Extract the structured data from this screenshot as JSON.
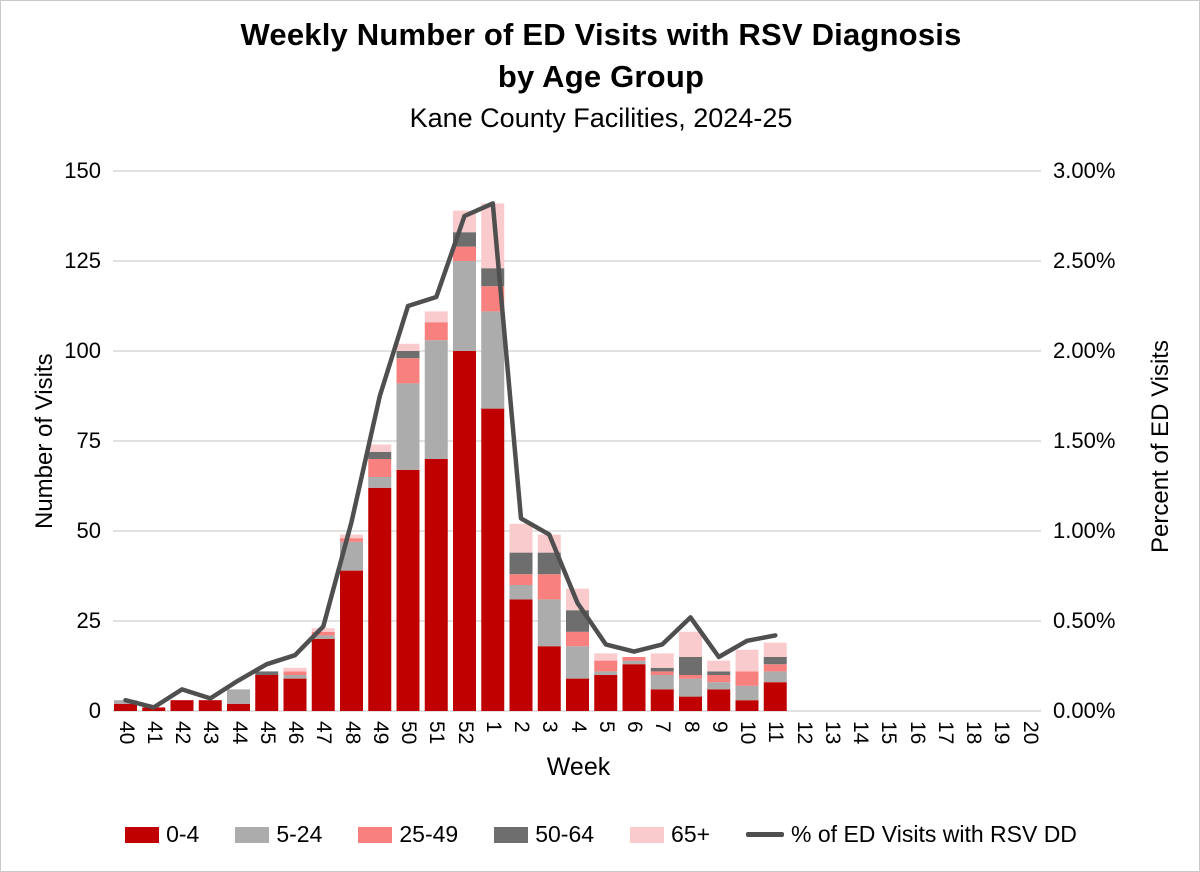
{
  "title": {
    "line1": "Weekly Number of ED Visits with RSV Diagnosis",
    "line2": "by Age Group",
    "subtitle": "Kane County Facilities, 2024-25"
  },
  "axes": {
    "x": {
      "title": "Week"
    },
    "y_left": {
      "title": "Number of Visits",
      "min": 0,
      "max": 150,
      "step": 25,
      "tick_labels": [
        "0",
        "25",
        "50",
        "75",
        "100",
        "125",
        "150"
      ]
    },
    "y_right": {
      "title": "Percent of ED Visits",
      "min": 0,
      "max": 3,
      "step": 0.5,
      "tick_labels": [
        "0.00%",
        "0.50%",
        "1.00%",
        "1.50%",
        "2.00%",
        "2.50%",
        "3.00%"
      ]
    }
  },
  "colors": {
    "age_0_4": "#C00000",
    "age_5_24": "#ACACAC",
    "age_25_49": "#F8807F",
    "age_50_64": "#6E6E6E",
    "age_65_plus": "#FACBCD",
    "line": "#4F4F4F",
    "grid": "#D9D9D9"
  },
  "chart_data": {
    "type": "bar",
    "bar_mode": "stacked",
    "line_overlay": true,
    "grid": "horizontal",
    "categories": [
      "40",
      "41",
      "42",
      "43",
      "44",
      "45",
      "46",
      "47",
      "48",
      "49",
      "50",
      "51",
      "52",
      "1",
      "2",
      "3",
      "4",
      "5",
      "6",
      "7",
      "8",
      "9",
      "10",
      "11",
      "12",
      "13",
      "14",
      "15",
      "16",
      "17",
      "18",
      "19",
      "20"
    ],
    "series": [
      {
        "name": "0-4",
        "color_key": "age_0_4",
        "values": [
          2,
          1,
          3,
          3,
          2,
          10,
          9,
          20,
          39,
          62,
          67,
          70,
          100,
          84,
          31,
          18,
          9,
          10,
          13,
          6,
          4,
          6,
          3,
          8,
          0,
          0,
          0,
          0,
          0,
          0,
          0,
          0,
          0
        ]
      },
      {
        "name": "5-24",
        "color_key": "age_5_24",
        "values": [
          1,
          0,
          0,
          0,
          4,
          0,
          1,
          1,
          8,
          3,
          24,
          33,
          25,
          27,
          4,
          13,
          9,
          1,
          1,
          4,
          5,
          2,
          4,
          3,
          0,
          0,
          0,
          0,
          0,
          0,
          0,
          0,
          0
        ]
      },
      {
        "name": "25-49",
        "color_key": "age_25_49",
        "values": [
          0,
          0,
          0,
          0,
          0,
          0,
          1,
          1,
          1,
          5,
          7,
          5,
          4,
          7,
          3,
          7,
          4,
          3,
          1,
          1,
          1,
          2,
          4,
          2,
          0,
          0,
          0,
          0,
          0,
          0,
          0,
          0,
          0
        ]
      },
      {
        "name": "50-64",
        "color_key": "age_50_64",
        "values": [
          0,
          0,
          0,
          0,
          0,
          1,
          0,
          0,
          0,
          2,
          2,
          0,
          4,
          5,
          6,
          6,
          6,
          0,
          0,
          1,
          5,
          1,
          0,
          2,
          0,
          0,
          0,
          0,
          0,
          0,
          0,
          0,
          0
        ]
      },
      {
        "name": "65+",
        "color_key": "age_65_plus",
        "values": [
          0,
          0,
          0,
          0,
          0,
          0,
          1,
          1,
          1,
          2,
          2,
          3,
          6,
          18,
          8,
          5,
          6,
          2,
          0,
          4,
          7,
          3,
          6,
          4,
          0,
          0,
          0,
          0,
          0,
          0,
          0,
          0,
          0
        ]
      }
    ],
    "line_series": {
      "name": "% of ED Visits with RSV DD",
      "color_key": "line",
      "axis": "y_right",
      "values": [
        0.06,
        0.02,
        0.12,
        0.07,
        0.17,
        0.26,
        0.31,
        0.47,
        1.05,
        1.75,
        2.25,
        2.3,
        2.75,
        2.82,
        1.07,
        0.98,
        0.6,
        0.37,
        0.33,
        0.37,
        0.52,
        0.3,
        0.39,
        0.42,
        null,
        null,
        null,
        null,
        null,
        null,
        null,
        null,
        null
      ]
    }
  },
  "legend": {
    "items": [
      {
        "label": "0-4",
        "type": "swatch",
        "color_key": "age_0_4"
      },
      {
        "label": "5-24",
        "type": "swatch",
        "color_key": "age_5_24"
      },
      {
        "label": "25-49",
        "type": "swatch",
        "color_key": "age_25_49"
      },
      {
        "label": "50-64",
        "type": "swatch",
        "color_key": "age_50_64"
      },
      {
        "label": "65+",
        "type": "swatch",
        "color_key": "age_65_plus"
      },
      {
        "label": "% of ED Visits with RSV DD",
        "type": "line",
        "color_key": "line"
      }
    ]
  }
}
